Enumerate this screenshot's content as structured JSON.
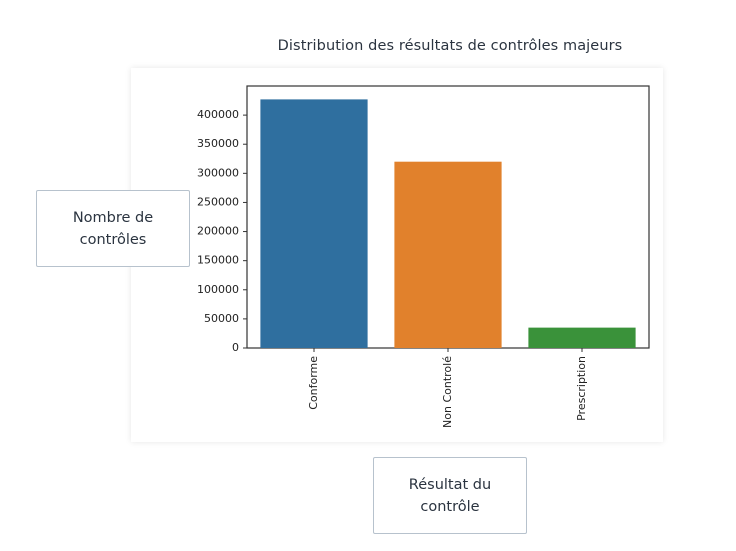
{
  "page": {
    "title": "Distribution des résultats de contrôles majeurs",
    "y_callout": "Nombre de\ncontrôles",
    "x_callout": "Résultat du\ncontrôle"
  },
  "chart_data": {
    "type": "bar",
    "categories": [
      "Conforme",
      "Non Controlé",
      "Prescription"
    ],
    "values": [
      427000,
      320000,
      35000
    ],
    "colors": [
      "#2f6f9f",
      "#e1812c",
      "#3a923a"
    ],
    "ylim": [
      0,
      450000
    ],
    "yticks": [
      0,
      50000,
      100000,
      150000,
      200000,
      250000,
      300000,
      350000,
      400000
    ],
    "ytick_labels": [
      "0",
      "50000",
      "100000",
      "150000",
      "200000",
      "250000",
      "300000",
      "350000",
      "400000"
    ],
    "title": "",
    "xlabel": "",
    "ylabel": "",
    "grid": false,
    "legend": "none"
  }
}
